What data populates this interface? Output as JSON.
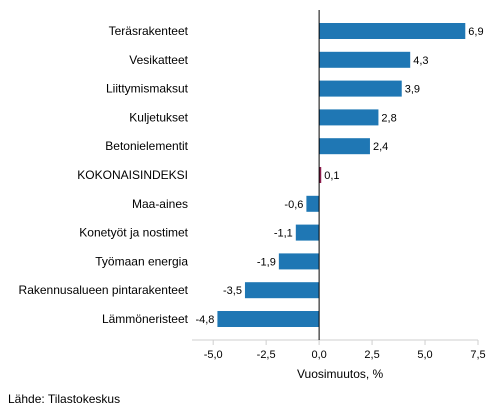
{
  "chart_data": {
    "type": "bar",
    "orientation": "horizontal",
    "categories": [
      "Teräsrakenteet",
      "Vesikatteet",
      "Liittymismaksut",
      "Kuljetukset",
      "Betonielementit",
      "KOKONAISINDEKSI",
      "Maa-aines",
      "Konetyöt ja nostimet",
      "Työmaan energia",
      "Rakennusalueen pintarakenteet",
      "Lämmöneristeet"
    ],
    "values": [
      6.9,
      4.3,
      3.9,
      2.8,
      2.4,
      0.1,
      -0.6,
      -1.1,
      -1.9,
      -3.5,
      -4.8
    ],
    "value_labels": [
      "6,9",
      "4,3",
      "3,9",
      "2,8",
      "2,4",
      "0,1",
      "-0,6",
      "-1,1",
      "-1,9",
      "-3,5",
      "-4,8"
    ],
    "xlabel": "Vuosimuutos, %",
    "xlim": [
      -6,
      7.5
    ],
    "xticks": [
      -5,
      -2.5,
      0,
      2.5,
      5,
      7.5
    ],
    "xtick_labels": [
      "-5,0",
      "-2,5",
      "0,0",
      "2,5",
      "5,0",
      "7,5"
    ],
    "colors": {
      "bar": "#1f77b4",
      "highlight": "#8b1a4a",
      "axis": "#000000",
      "tick_line": "#cfcfcf"
    },
    "highlight_category": "KOKONAISINDEKSI",
    "grid": false
  },
  "source": "Lähde: Tilastokeskus"
}
